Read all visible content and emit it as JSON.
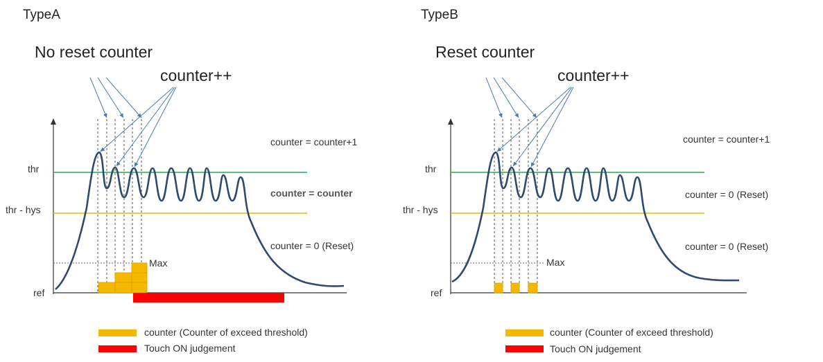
{
  "left": {
    "type_label": "TypeA",
    "title": "No reset counter",
    "counter_inc": "counter++",
    "thr_label": "thr",
    "thr_hys_label": "thr - hys",
    "ref_label": "ref",
    "max_label": "Max",
    "ann_above": "counter  = counter+1",
    "ann_between": "counter = counter",
    "ann_below": "counter  = 0 (Reset)",
    "legend_counter": "counter (Counter of exceed threshold)",
    "legend_touch": "Touch ON judgement"
  },
  "right": {
    "type_label": "TypeB",
    "title": "Reset counter",
    "counter_inc": "counter++",
    "thr_label": "thr",
    "thr_hys_label": "thr - hys",
    "ref_label": "ref",
    "max_label": "Max",
    "ann_above": "counter  = counter+1",
    "ann_between": "counter  = 0 (Reset)",
    "ann_below": "counter  = 0 (Reset)",
    "legend_counter": "counter (Counter of exceed threshold)",
    "legend_touch": "Touch ON judgement"
  },
  "colors": {
    "signal": "#2f4a6e",
    "threshold": "#2aa84a",
    "hysteresis": "#e8b800",
    "counter_block": "#f5b800",
    "touch_bar": "#ff0000",
    "arrow": "#4a78b8"
  }
}
